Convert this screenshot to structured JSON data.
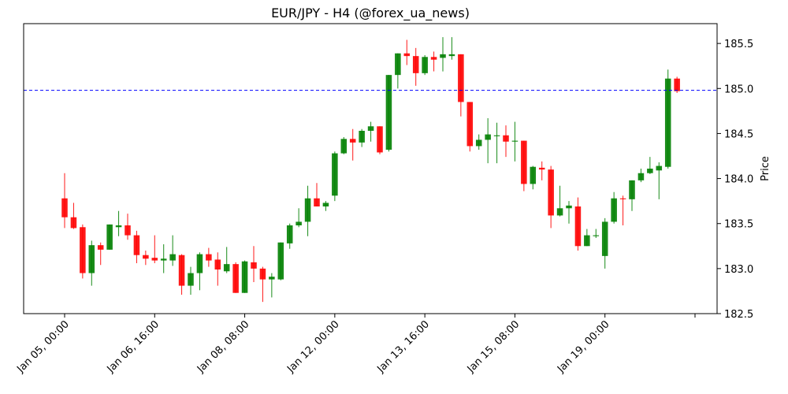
{
  "chart_data": {
    "type": "candlestick",
    "title": "EUR/JPY - H4 (@forex_ua_news)",
    "y_label": "Price",
    "y_axis_side": "right",
    "up_color": "green",
    "down_color": "red",
    "hline": {
      "value": 184.98,
      "color": "blue",
      "dash": true
    },
    "open": [
      183.78,
      183.57,
      183.46,
      182.95,
      183.26,
      183.21,
      183.46,
      183.48,
      183.37,
      183.15,
      183.12,
      183.09,
      183.09,
      183.15,
      182.81,
      182.95,
      183.16,
      183.1,
      182.97,
      183.05,
      182.73,
      183.07,
      183.0,
      182.88,
      182.88,
      183.28,
      183.48,
      183.52,
      183.78,
      183.69,
      183.81,
      184.28,
      184.44,
      184.4,
      184.53,
      184.58,
      184.32,
      185.15,
      185.39,
      185.36,
      185.17,
      185.35,
      185.34,
      185.36,
      185.38,
      184.85,
      184.36,
      184.43,
      184.47,
      184.48,
      184.41,
      184.42,
      183.94,
      184.12,
      184.1,
      183.59,
      183.67,
      183.69,
      183.25,
      183.36,
      183.14,
      183.52,
      183.78,
      183.77,
      183.98,
      184.06,
      184.09,
      184.13,
      185.11
    ],
    "high": [
      184.06,
      183.73,
      183.49,
      183.31,
      183.29,
      183.49,
      183.64,
      183.61,
      183.42,
      183.2,
      183.37,
      183.27,
      183.37,
      183.16,
      183.02,
      183.18,
      183.23,
      183.18,
      183.24,
      183.07,
      183.09,
      183.25,
      183.02,
      182.95,
      183.29,
      183.5,
      183.67,
      183.92,
      183.95,
      183.75,
      184.3,
      184.46,
      184.55,
      184.55,
      184.63,
      184.58,
      185.15,
      185.39,
      185.54,
      185.45,
      185.37,
      185.41,
      185.57,
      185.57,
      185.38,
      184.85,
      184.49,
      184.67,
      184.62,
      184.59,
      184.63,
      184.42,
      184.14,
      184.19,
      184.14,
      183.92,
      183.75,
      183.79,
      183.44,
      183.44,
      183.56,
      183.85,
      183.81,
      183.98,
      184.11,
      184.24,
      184.18,
      185.21,
      185.13
    ],
    "low": [
      183.45,
      183.44,
      182.89,
      182.81,
      183.04,
      183.21,
      183.36,
      183.32,
      183.06,
      183.04,
      183.06,
      182.95,
      183.03,
      182.71,
      182.71,
      182.76,
      183.02,
      182.81,
      182.95,
      182.73,
      182.73,
      182.85,
      182.63,
      182.68,
      182.87,
      183.22,
      183.46,
      183.36,
      183.69,
      183.64,
      183.75,
      184.27,
      184.2,
      184.35,
      184.41,
      184.27,
      184.3,
      185.0,
      185.26,
      185.03,
      185.15,
      185.19,
      185.19,
      185.32,
      184.69,
      184.3,
      184.32,
      184.17,
      184.17,
      184.24,
      184.19,
      183.86,
      183.88,
      183.98,
      183.45,
      183.58,
      183.5,
      183.2,
      183.25,
      183.34,
      183.0,
      183.5,
      183.48,
      183.64,
      183.96,
      184.05,
      183.77,
      184.11,
      184.95
    ],
    "close": [
      183.57,
      183.45,
      182.95,
      183.26,
      183.21,
      183.49,
      183.48,
      183.37,
      183.15,
      183.11,
      183.09,
      183.11,
      183.16,
      182.81,
      182.95,
      183.16,
      183.09,
      182.99,
      183.05,
      182.73,
      183.08,
      183.0,
      182.88,
      182.91,
      183.29,
      183.48,
      183.52,
      183.78,
      183.69,
      183.73,
      184.28,
      184.44,
      184.4,
      184.53,
      184.58,
      184.29,
      185.15,
      185.39,
      185.36,
      185.17,
      185.35,
      185.32,
      185.38,
      185.38,
      184.85,
      184.36,
      184.43,
      184.49,
      184.48,
      184.41,
      184.42,
      183.94,
      184.13,
      184.1,
      183.59,
      183.67,
      183.7,
      183.25,
      183.37,
      183.37,
      183.52,
      183.78,
      183.77,
      183.98,
      184.06,
      184.11,
      184.14,
      185.11,
      184.97
    ],
    "xlim": [
      -4.55,
      72.45
    ],
    "xticks": [
      {
        "value": 0,
        "label": "Jan 05, 00:00"
      },
      {
        "value": 10,
        "label": "Jan 06, 16:00"
      },
      {
        "value": 20,
        "label": "Jan 08, 08:00"
      },
      {
        "value": 30,
        "label": "Jan 12, 00:00"
      },
      {
        "value": 40,
        "label": "Jan 13, 16:00"
      },
      {
        "value": 50,
        "label": "Jan 15, 08:00"
      },
      {
        "value": 60,
        "label": "Jan 19, 00:00"
      },
      {
        "value": 70,
        "label": null
      }
    ],
    "ylim": [
      182.5,
      185.72
    ],
    "yticks": [
      182.5,
      {
        "value": 183,
        "label": "183.0"
      },
      183.5,
      {
        "value": 184,
        "label": "184.0"
      },
      184.5,
      {
        "value": 185,
        "label": "185.0"
      },
      185.5
    ]
  }
}
